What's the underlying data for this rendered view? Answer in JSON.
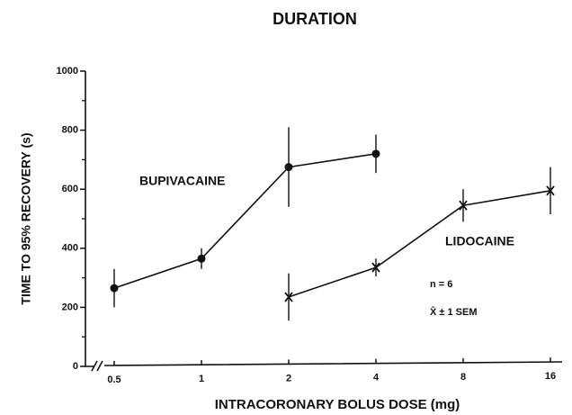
{
  "chart_data": {
    "type": "line",
    "title": "DURATION",
    "x_label": "INTRACORONARY  BOLUS  DOSE  (mg)",
    "y_label": "TIME TO 95% RECOVERY (s)",
    "categories": [
      "0.5",
      "1",
      "2",
      "4",
      "8",
      "16"
    ],
    "series": [
      {
        "name": "BUPIVACAINE",
        "color": "#111111",
        "marker": "circle",
        "values": [
          265,
          365,
          675,
          720,
          null,
          null
        ],
        "errors": [
          65,
          35,
          135,
          65,
          null,
          null
        ]
      },
      {
        "name": "LIDOCAINE",
        "color": "#111111",
        "marker": "x",
        "values": [
          null,
          null,
          235,
          335,
          545,
          595
        ],
        "errors": [
          null,
          null,
          80,
          30,
          55,
          80
        ]
      }
    ],
    "annotations": [
      "n = 6",
      "X̄ ± 1 SEM"
    ],
    "ylim": [
      0,
      1000
    ],
    "yticks": [
      0,
      200,
      400,
      600,
      800,
      1000
    ],
    "yminor_ticks": [
      100,
      300,
      500,
      700,
      900
    ]
  }
}
